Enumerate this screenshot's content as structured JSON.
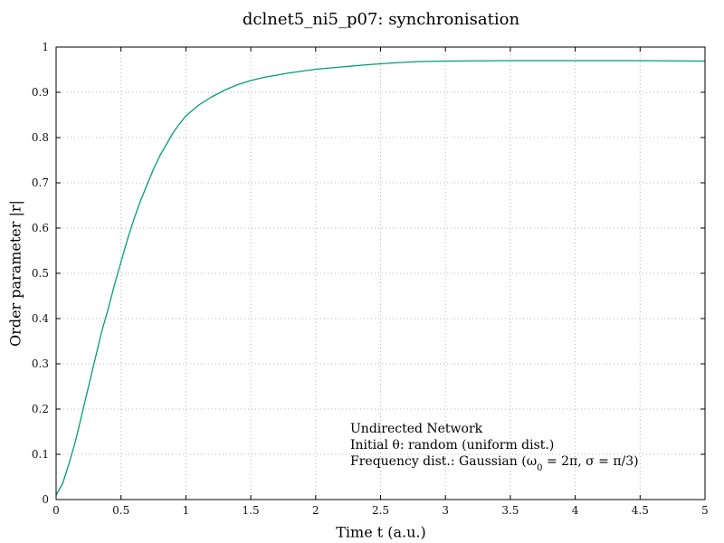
{
  "chart_data": {
    "type": "line",
    "title": "dclnet5_ni5_p07: synchronisation",
    "xlabel": "Time t (a.u.)",
    "ylabel": "Order parameter |r|",
    "xlim": [
      0,
      5
    ],
    "ylim": [
      0,
      1
    ],
    "grid": true,
    "grid_style": "dotted",
    "xticks": [
      "0",
      "0.5",
      "1",
      "1.5",
      "2",
      "2.5",
      "3",
      "3.5",
      "4",
      "4.5",
      "5"
    ],
    "yticks": [
      "0",
      "0.1",
      "0.2",
      "0.3",
      "0.4",
      "0.5",
      "0.6",
      "0.7",
      "0.8",
      "0.9",
      "1"
    ],
    "series": [
      {
        "color": "#009e73",
        "x": [
          0,
          0.05,
          0.1,
          0.15,
          0.2,
          0.25,
          0.3,
          0.35,
          0.4,
          0.45,
          0.5,
          0.55,
          0.6,
          0.65,
          0.7,
          0.75,
          0.8,
          0.85,
          0.9,
          0.95,
          1.0,
          1.1,
          1.2,
          1.3,
          1.4,
          1.5,
          1.6,
          1.7,
          1.8,
          1.9,
          2.0,
          2.2,
          2.4,
          2.6,
          2.8,
          3.0,
          3.2,
          3.5,
          4.0,
          4.5,
          5.0
        ],
        "y": [
          0.01,
          0.035,
          0.08,
          0.13,
          0.19,
          0.25,
          0.31,
          0.37,
          0.42,
          0.475,
          0.525,
          0.575,
          0.62,
          0.66,
          0.695,
          0.73,
          0.76,
          0.785,
          0.81,
          0.83,
          0.848,
          0.872,
          0.89,
          0.905,
          0.917,
          0.926,
          0.933,
          0.938,
          0.943,
          0.947,
          0.951,
          0.956,
          0.961,
          0.965,
          0.968,
          0.969,
          0.9695,
          0.97,
          0.97,
          0.97,
          0.969
        ]
      }
    ],
    "annotation": {
      "heading": "Undirected Network",
      "line1": "Initial θ: random (uniform dist.)",
      "line2_prefix": "Frequency dist.: Gaussian (ω",
      "line2_sub": "0",
      "line2_suffix": " = 2π, σ = π/3)"
    }
  }
}
